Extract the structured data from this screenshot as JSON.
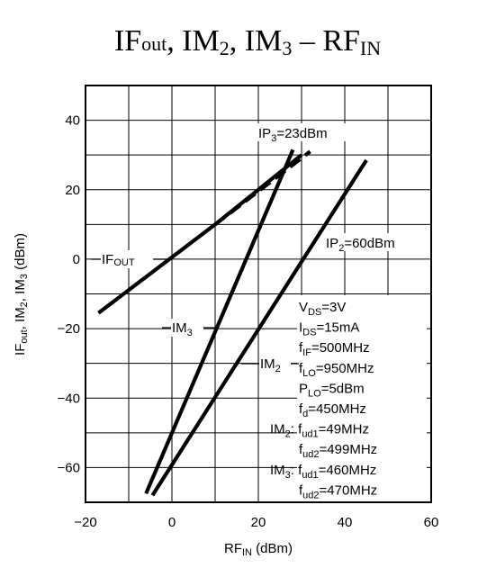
{
  "title": {
    "main": "IF",
    "sub_out": "out",
    "im2": "IM",
    "im2_sub": "2",
    "im3": "IM",
    "im3_sub": "3",
    "dash": "–",
    "rf": "RF",
    "rf_sub": "IN"
  },
  "chart_data": {
    "type": "line",
    "title": "IFout, IM2, IM3 – RFIN",
    "xlabel": "RFIN (dBm)",
    "ylabel": "IFout, IM2, IM3 (dBm)",
    "xlim": [
      -20,
      60
    ],
    "ylim": [
      -70,
      50
    ],
    "xticks": [
      -20,
      0,
      20,
      40,
      60
    ],
    "yticks": [
      -60,
      -40,
      -20,
      0,
      20,
      40
    ],
    "x_gridlines": [
      -20,
      -10,
      0,
      10,
      20,
      30,
      40,
      50,
      60
    ],
    "y_gridlines": [
      -70,
      -60,
      -50,
      -40,
      -30,
      -20,
      -10,
      0,
      10,
      20,
      30,
      40,
      50
    ],
    "grid": true,
    "series": [
      {
        "name": "IFOUT",
        "points": [
          [
            -17,
            -15.5
          ],
          [
            10,
            10
          ],
          [
            30,
            30
          ]
        ],
        "style": "solid"
      },
      {
        "name": "IFOUT extrapolation",
        "points": [
          [
            10,
            10
          ],
          [
            32,
            31
          ]
        ],
        "style": "dashed"
      },
      {
        "name": "IM3",
        "points": [
          [
            -6,
            -67.5
          ],
          [
            28,
            31.5
          ]
        ],
        "style": "solid"
      },
      {
        "name": "IM2",
        "points": [
          [
            -4.5,
            -68
          ],
          [
            45,
            28.5
          ]
        ],
        "style": "solid"
      }
    ],
    "annotations": {
      "ip3": {
        "text": "IP",
        "sub": "3",
        "rest": "=23dBm"
      },
      "ip2": {
        "text": "IP",
        "sub": "2",
        "rest": "=60dBm"
      },
      "ifout": {
        "text": "IF",
        "sub": "OUT"
      },
      "im3": {
        "text": "IM",
        "sub": "3"
      },
      "im2": {
        "text": "IM",
        "sub": "2"
      }
    },
    "conditions": [
      {
        "main": "V",
        "sub": "DS",
        "rest": "=3V"
      },
      {
        "main": "I",
        "sub": "DS",
        "rest": "=15mA"
      },
      {
        "main": "f",
        "sub": "IF",
        "rest": "=500MHz"
      },
      {
        "main": "f",
        "sub": "LO",
        "rest": "=950MHz"
      },
      {
        "main": "P",
        "sub": "LO",
        "rest": "=5dBm"
      },
      {
        "main": "f",
        "sub": "d",
        "rest": "=450MHz"
      },
      {
        "prefix": "IM",
        "prefix_sub": "2",
        "prefix_rest": ": ",
        "main": "f",
        "sub": "ud1",
        "rest": "=49MHz"
      },
      {
        "main": "f",
        "sub": "ud2",
        "rest": "=499MHz"
      },
      {
        "prefix": "IM",
        "prefix_sub": "3",
        "prefix_rest": ": ",
        "main": "f",
        "sub": "ud1",
        "rest": "=460MHz"
      },
      {
        "main": "f",
        "sub": "ud2",
        "rest": "=470MHz"
      }
    ],
    "axis_text": {
      "x_main": "RF",
      "x_sub": "IN",
      "x_unit": "(dBm)",
      "y_p1": "IF",
      "y_p1_sub": "out",
      "y_p2": ", IM",
      "y_p2_sub": "2",
      "y_p3": ", IM",
      "y_p3_sub": "3",
      "y_unit": "(dBm)"
    }
  }
}
